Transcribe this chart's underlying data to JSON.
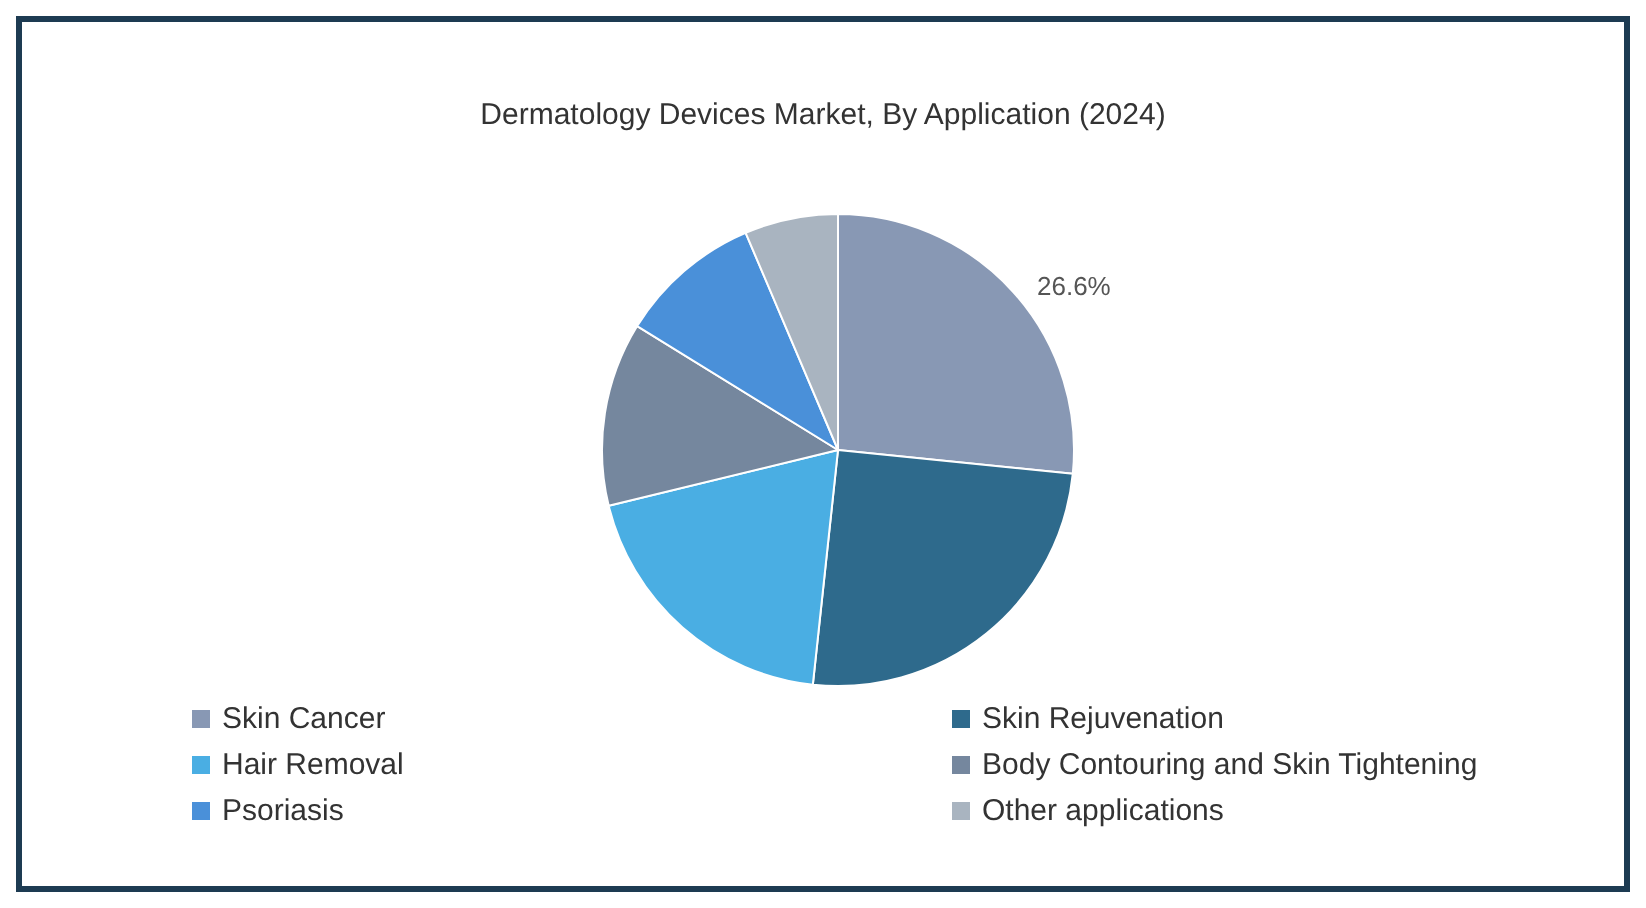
{
  "chart_data": {
    "type": "pie",
    "title": "Dermatology Devices Market, By Application (2024)",
    "categories": [
      "Skin Cancer",
      "Skin Rejuvenation",
      "Hair Removal",
      "Body Contouring and Skin Tightening",
      "Psoriasis",
      "Other applications"
    ],
    "values": [
      26.6,
      25.1,
      19.5,
      12.6,
      9.8,
      6.4
    ],
    "colors": [
      "#8898b4",
      "#2e6a8c",
      "#4aaee3",
      "#75879e",
      "#4a90d9",
      "#a9b4c0"
    ],
    "value_labels": [
      "26.6%",
      null,
      null,
      null,
      null,
      null
    ],
    "legend": "bottom"
  }
}
